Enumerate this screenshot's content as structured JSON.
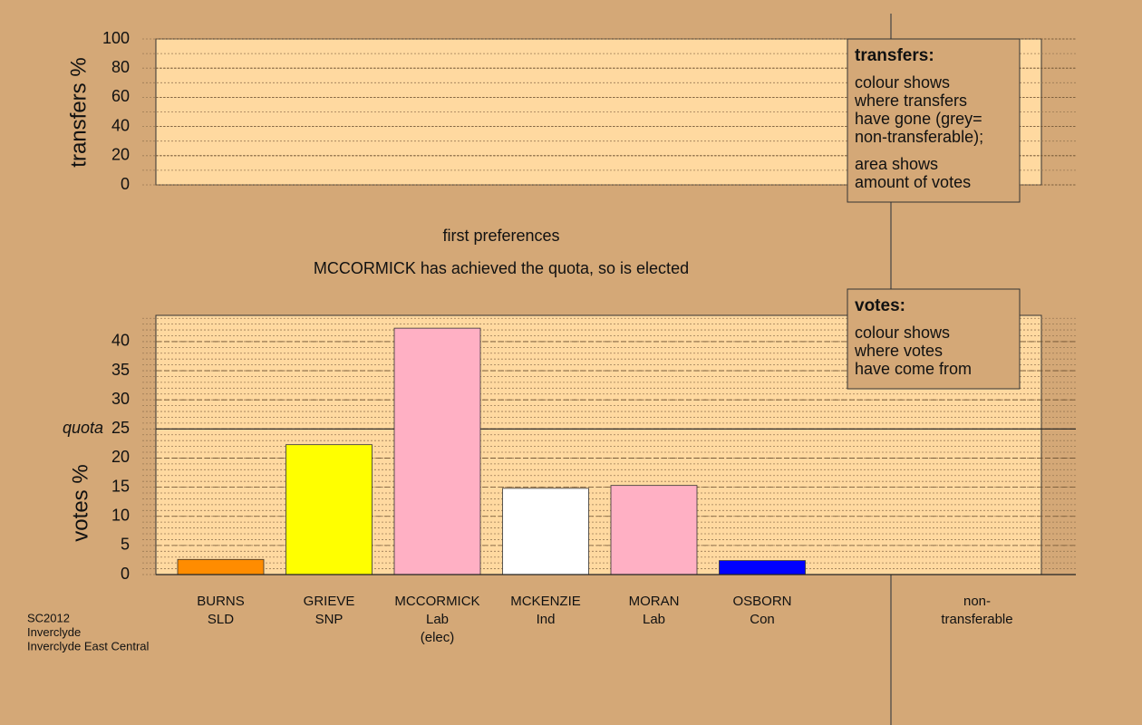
{
  "chart_data": [
    {
      "type": "bar",
      "ylabel": "transfers %",
      "ylim": [
        0,
        100
      ],
      "yticks": [
        0,
        20,
        40,
        60,
        80,
        100
      ],
      "grid": true,
      "categories": [],
      "values": [],
      "legend_title": "transfers:",
      "legend_text": [
        [
          "colour shows",
          "where transfers",
          "have gone (grey=",
          "non-transferable);"
        ],
        [
          "area shows",
          "amount of votes"
        ]
      ]
    },
    {
      "type": "bar",
      "title": "first preferences",
      "subtitle": "MCCORMICK has achieved the quota, so is elected",
      "ylabel": "votes %",
      "ylim": [
        0,
        44.5
      ],
      "yticks": [
        0,
        5,
        10,
        15,
        20,
        25,
        30,
        35,
        40
      ],
      "grid": true,
      "quota": {
        "value": 25,
        "label": "quota"
      },
      "categories": [
        [
          "BURNS",
          "SLD"
        ],
        [
          "GRIEVE",
          "SNP"
        ],
        [
          "MCCORMICK",
          "Lab",
          "(elec)"
        ],
        [
          "MCKENZIE",
          "Ind"
        ],
        [
          "MORAN",
          "Lab"
        ],
        [
          "OSBORN",
          "Con"
        ],
        [
          "non-",
          "transferable"
        ]
      ],
      "values": [
        2.6,
        22.3,
        42.3,
        14.8,
        15.3,
        2.4,
        0
      ],
      "colors": [
        "#ff8c00",
        "#ffff00",
        "#ffb0c4",
        "#ffffff",
        "#ffb0c4",
        "#0000ff",
        "#a0a0a0"
      ],
      "legend_title": "votes:",
      "legend_text": [
        [
          "colour shows",
          "where votes",
          "have come from"
        ]
      ]
    }
  ],
  "footer": [
    "SC2012",
    "Inverclyde",
    "Inverclyde East Central"
  ]
}
